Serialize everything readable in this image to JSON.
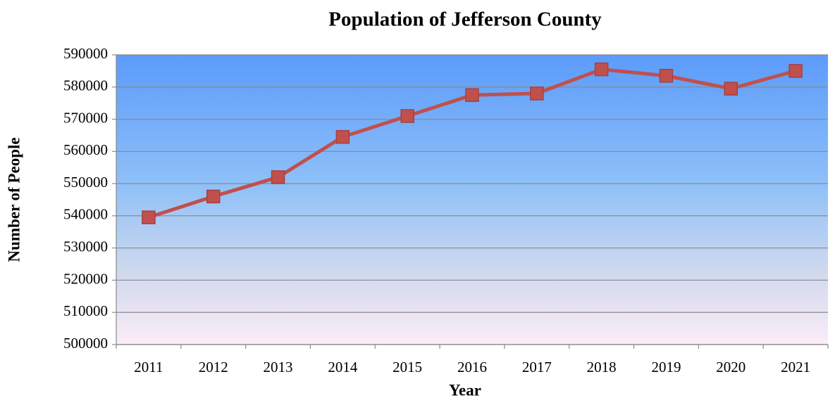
{
  "chart_data": {
    "type": "line",
    "title": "Population of Jefferson County",
    "x_label": "Year",
    "y_label": "Number of People",
    "categories": [
      "2011",
      "2012",
      "2013",
      "2014",
      "2015",
      "2016",
      "2017",
      "2018",
      "2019",
      "2020",
      "2021"
    ],
    "values": [
      539500,
      546000,
      552000,
      564500,
      571000,
      577500,
      578000,
      585500,
      583500,
      579500,
      585000
    ],
    "color": "#c0504d",
    "ylim": [
      500000,
      590000
    ],
    "yticks": [
      500000,
      510000,
      520000,
      530000,
      540000,
      550000,
      560000,
      570000,
      580000,
      590000
    ],
    "grid": true
  }
}
